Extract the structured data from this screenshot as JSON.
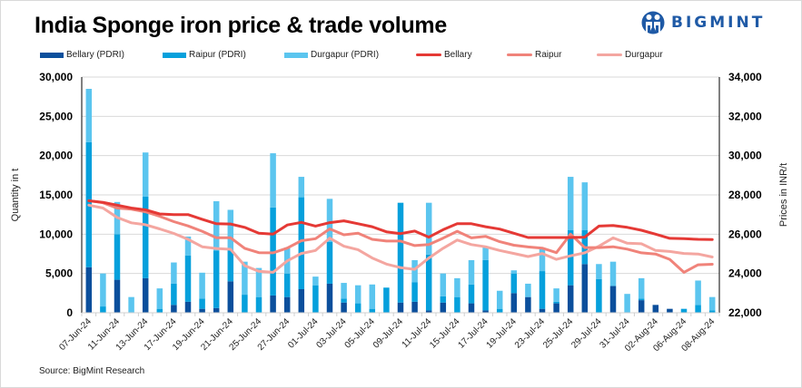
{
  "header": {
    "title": "India Sponge iron price & trade volume",
    "logo_text": "BIGMINT",
    "logo_icon": "bigmint-people-icon"
  },
  "footer": {
    "source": "Source: BigMint Research"
  },
  "colors": {
    "bellary_bar": "#0b4f9c",
    "raipur_bar": "#06a0dc",
    "durgapur_bar": "#5bc5ef",
    "bellary_line": "#e53935",
    "raipur_line": "#f0837a",
    "durgapur_line": "#f4a6a0",
    "grid": "#d9d9d9",
    "logo": "#1f5aa6"
  },
  "legend": [
    {
      "label": "Bellary (PDRI)",
      "kind": "bar",
      "color_key": "bellary_bar"
    },
    {
      "label": "Raipur (PDRI)",
      "kind": "bar",
      "color_key": "raipur_bar"
    },
    {
      "label": "Durgapur (PDRI)",
      "kind": "bar",
      "color_key": "durgapur_bar"
    },
    {
      "label": "Bellary",
      "kind": "line",
      "color_key": "bellary_line"
    },
    {
      "label": "Raipur",
      "kind": "line",
      "color_key": "raipur_line"
    },
    {
      "label": "Durgapur",
      "kind": "line",
      "color_key": "durgapur_line"
    }
  ],
  "chart_data": {
    "type": "bar",
    "subtype": "stacked bar with line overlay (dual axis)",
    "title": "India Sponge iron price & trade volume",
    "xlabel": "",
    "ylabel": "Quantity in t",
    "y2label": "Prices in INR/t",
    "ylim": [
      0,
      30000
    ],
    "yticks": [
      0,
      5000,
      10000,
      15000,
      20000,
      25000,
      30000
    ],
    "ytick_labels": [
      "0",
      "5,000",
      "10,000",
      "15,000",
      "20,000",
      "25,000",
      "30,000"
    ],
    "y2lim": [
      22000,
      34000
    ],
    "y2ticks": [
      22000,
      24000,
      26000,
      28000,
      30000,
      32000,
      34000
    ],
    "y2tick_labels": [
      "22,000",
      "24,000",
      "26,000",
      "28,000",
      "30,000",
      "32,000",
      "34,000"
    ],
    "grid": true,
    "legend_position": "top",
    "x_tick_labels": [
      "07-Jun-24",
      "",
      "11-Jun-24",
      "",
      "13-Jun-24",
      "",
      "17-Jun-24",
      "",
      "19-Jun-24",
      "",
      "21-Jun-24",
      "",
      "25-Jun-24",
      "",
      "27-Jun-24",
      "",
      "01-Jul-24",
      "",
      "03-Jul-24",
      "",
      "05-Jul-24",
      "",
      "09-Jul-24",
      "",
      "11-Jul-24",
      "",
      "15-Jul-24",
      "",
      "17-Jul-24",
      "",
      "19-Jul-24",
      "",
      "23-Jul-24",
      "",
      "25-Jul-24",
      "",
      "29-Jul-24",
      "",
      "31-Jul-24",
      "",
      "02-Aug-24",
      "",
      "06-Aug-24",
      "",
      "08-Aug-24"
    ],
    "bar_series": [
      {
        "name": "Bellary (PDRI)",
        "axis": "left",
        "color_key": "bellary_bar",
        "values": [
          5800,
          0,
          4200,
          0,
          4400,
          0,
          1000,
          1400,
          500,
          600,
          4000,
          0,
          0,
          2200,
          2000,
          3000,
          0,
          3700,
          1300,
          0,
          0,
          0,
          1300,
          1400,
          300,
          1300,
          0,
          1200,
          300,
          0,
          2500,
          2000,
          500,
          1200,
          3500,
          6200,
          0,
          3400,
          0,
          1600,
          1000,
          500,
          0,
          0,
          0
        ]
      },
      {
        "name": "Raipur (PDRI)",
        "axis": "left",
        "color_key": "raipur_bar",
        "values": [
          15900,
          800,
          5800,
          0,
          10400,
          500,
          2700,
          5900,
          1300,
          7300,
          4000,
          2300,
          2000,
          11200,
          3000,
          11700,
          3500,
          5300,
          500,
          1200,
          500,
          3200,
          12700,
          2500,
          7100,
          800,
          2000,
          2400,
          6400,
          500,
          2500,
          0,
          4800,
          200,
          7000,
          4300,
          4300,
          0,
          0,
          200,
          0,
          0,
          500,
          1000,
          300
        ]
      },
      {
        "name": "Durgapur (PDRI)",
        "axis": "left",
        "color_key": "durgapur_bar",
        "values": [
          6800,
          4200,
          4100,
          2000,
          5600,
          2600,
          2700,
          2400,
          3300,
          6300,
          5100,
          4200,
          3700,
          6900,
          3300,
          2600,
          1100,
          5500,
          2000,
          2300,
          3100,
          0,
          0,
          2800,
          6600,
          2900,
          2400,
          3100,
          1600,
          2300,
          400,
          1700,
          2800,
          1700,
          6800,
          6100,
          1900,
          3100,
          2400,
          2600,
          0,
          0,
          0,
          3100,
          1700
        ]
      }
    ],
    "line_series": [
      {
        "name": "Bellary",
        "axis": "right",
        "color_key": "bellary_line",
        "values": [
          27700,
          27620,
          27480,
          27330,
          27240,
          27030,
          27000,
          27000,
          26760,
          26530,
          26520,
          26350,
          26050,
          26000,
          26470,
          26600,
          26410,
          26590,
          26680,
          26530,
          26380,
          26120,
          26030,
          26160,
          25850,
          26230,
          26530,
          26530,
          26380,
          26260,
          26050,
          25830,
          25830,
          25830,
          25830,
          25850,
          26410,
          26440,
          26350,
          26200,
          26000,
          25790,
          25770,
          25740,
          25730
        ]
      },
      {
        "name": "Raipur",
        "axis": "right",
        "color_key": "raipur_line",
        "values": [
          27710,
          27600,
          27330,
          27270,
          27140,
          26910,
          26640,
          26420,
          26150,
          25820,
          25820,
          25280,
          25060,
          25050,
          25290,
          25670,
          25770,
          26270,
          25970,
          26050,
          25740,
          25650,
          25650,
          25420,
          25470,
          25800,
          26150,
          25810,
          25890,
          25620,
          25440,
          25350,
          25290,
          25060,
          26000,
          25320,
          25320,
          25360,
          25240,
          25050,
          24990,
          24720,
          24060,
          24440,
          24470
        ]
      },
      {
        "name": "Durgapur",
        "axis": "right",
        "color_key": "durgapur_line",
        "values": [
          27480,
          27330,
          26850,
          26580,
          26480,
          26270,
          26040,
          25740,
          25360,
          25270,
          25230,
          24400,
          24110,
          24060,
          24640,
          25020,
          25170,
          25800,
          25390,
          25210,
          24790,
          24480,
          24300,
          24210,
          24790,
          25280,
          25700,
          25470,
          25360,
          25170,
          25020,
          24860,
          25020,
          24720,
          24900,
          25050,
          25390,
          25810,
          25540,
          25510,
          25170,
          25120,
          25020,
          24990,
          24840
        ]
      }
    ]
  }
}
